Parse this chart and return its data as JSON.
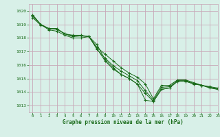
{
  "title": "Graphe pression niveau de la mer (hPa)",
  "bg_color": "#d8f0e8",
  "plot_bg_color": "#d8f0e8",
  "grid_color": "#c8a8b8",
  "line_color": "#1a6b1a",
  "marker_color": "#1a6b1a",
  "xlim": [
    -0.5,
    23
  ],
  "ylim": [
    1012.5,
    1020.5
  ],
  "yticks": [
    1013,
    1014,
    1015,
    1016,
    1017,
    1018,
    1019,
    1020
  ],
  "xticks": [
    0,
    1,
    2,
    3,
    4,
    5,
    6,
    7,
    8,
    9,
    10,
    11,
    12,
    13,
    14,
    15,
    16,
    17,
    18,
    19,
    20,
    21,
    22,
    23
  ],
  "series": [
    [
      1019.7,
      1019.0,
      1018.6,
      1018.5,
      1018.2,
      1018.0,
      1018.0,
      1018.1,
      1017.5,
      1016.4,
      1015.8,
      1015.3,
      1015.0,
      1014.6,
      1013.4,
      1013.3,
      1014.2,
      1014.3,
      1014.8,
      1014.8,
      1014.6,
      1014.5,
      1014.3,
      1014.2
    ],
    [
      1019.7,
      1019.0,
      1018.7,
      1018.7,
      1018.3,
      1018.2,
      1018.2,
      1018.1,
      1017.3,
      1016.8,
      1016.3,
      1015.8,
      1015.4,
      1015.1,
      1014.6,
      1013.5,
      1014.5,
      1014.5,
      1014.9,
      1014.9,
      1014.7,
      1014.5,
      1014.4,
      1014.3
    ],
    [
      1019.6,
      1019.0,
      1018.7,
      1018.65,
      1018.3,
      1018.15,
      1018.15,
      1018.1,
      1017.15,
      1016.5,
      1015.95,
      1015.55,
      1015.2,
      1014.85,
      1014.1,
      1013.4,
      1014.35,
      1014.4,
      1014.85,
      1014.85,
      1014.65,
      1014.5,
      1014.35,
      1014.25
    ],
    [
      1019.5,
      1018.95,
      1018.7,
      1018.65,
      1018.3,
      1018.1,
      1018.15,
      1018.1,
      1017.2,
      1016.3,
      1015.7,
      1015.3,
      1015.0,
      1014.6,
      1013.9,
      1013.3,
      1014.2,
      1014.3,
      1014.8,
      1014.8,
      1014.6,
      1014.5,
      1014.35,
      1014.2
    ]
  ]
}
